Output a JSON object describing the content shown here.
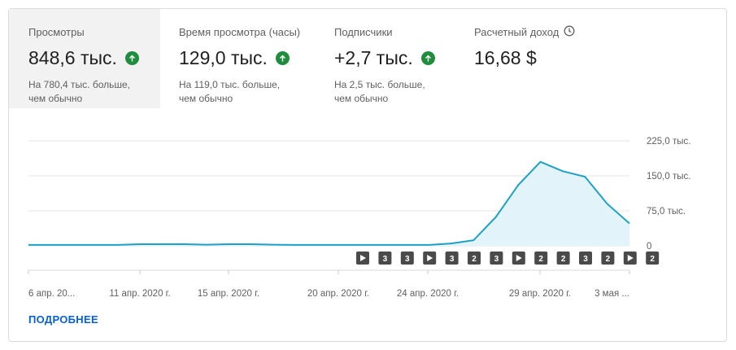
{
  "metrics": [
    {
      "label": "Просмотры",
      "value": "848,6 тыс.",
      "trend": "up",
      "note1": "На 780,4 тыс. больше,",
      "note2": "чем обычно"
    },
    {
      "label": "Время просмотра (часы)",
      "value": "129,0 тыс.",
      "trend": "up",
      "note1": "На 119,0 тыс. больше,",
      "note2": "чем обычно"
    },
    {
      "label": "Подписчики",
      "value": "+2,7 тыс.",
      "trend": "up",
      "note1": "На 2,5 тыс. больше,",
      "note2": "чем обычно"
    },
    {
      "label": "Расчетный доход",
      "value": "16,68 $",
      "icon": "clock-icon"
    }
  ],
  "colors": {
    "accent": "#1fa1c6",
    "fill": "#e3f3fa",
    "trend_up": "#1e8e3e",
    "badge": "#4a4a4a",
    "link": "#065fd4"
  },
  "chart_data": {
    "type": "area",
    "x_ticks": [
      "6 апр. 20...",
      "11 апр. 2020 г.",
      "15 апр. 2020 г.",
      "20 апр. 2020 г.",
      "24 апр. 2020 г.",
      "29 апр. 2020 г.",
      "3 мая ..."
    ],
    "y_ticks": [
      "225,0 тыс.",
      "150,0 тыс.",
      "75,0 тыс.",
      "0"
    ],
    "ylim": [
      0,
      225000
    ],
    "values": [
      2000,
      2000,
      2000,
      2000,
      2000,
      3500,
      3500,
      3500,
      2500,
      3500,
      3500,
      2500,
      2000,
      2000,
      2000,
      2000,
      2000,
      2000,
      2000,
      5000,
      12000,
      62000,
      130000,
      180000,
      160000,
      148000,
      90000,
      48000
    ],
    "markers": [
      "play",
      "3",
      "3",
      "play",
      "3",
      "2",
      "3",
      "play",
      "2",
      "2",
      "3",
      "2",
      "play",
      "2"
    ],
    "grid": true
  },
  "more_link": "ПОДРОБНЕЕ"
}
